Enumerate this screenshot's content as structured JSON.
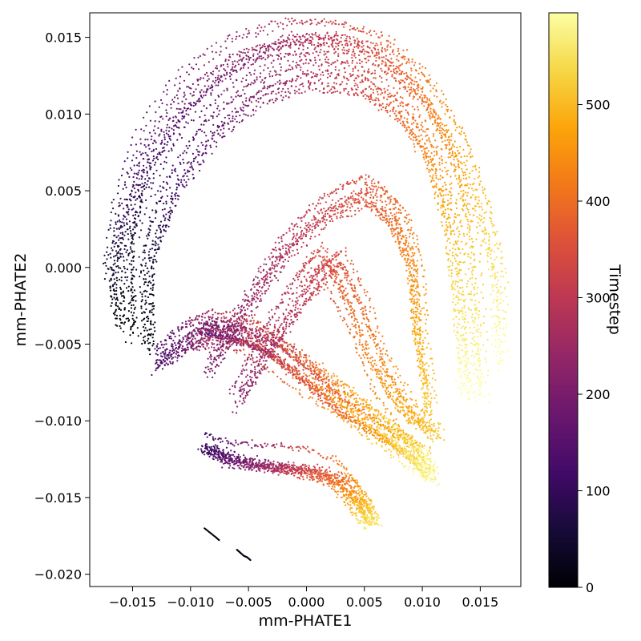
{
  "chart_data": {
    "type": "scatter",
    "xlabel": "mm-PHATE1",
    "ylabel": "mm-PHATE2",
    "colorbar_label": "Timestep",
    "colormap": "inferno",
    "xlim": [
      -0.0187,
      0.0185
    ],
    "ylim": [
      -0.0208,
      0.0166
    ],
    "color_range": [
      0,
      595
    ],
    "x_ticks": [
      {
        "value": -0.015,
        "label": "−0.015"
      },
      {
        "value": -0.01,
        "label": "−0.010"
      },
      {
        "value": -0.005,
        "label": "−0.005"
      },
      {
        "value": 0.0,
        "label": "0.000"
      },
      {
        "value": 0.005,
        "label": "0.005"
      },
      {
        "value": 0.01,
        "label": "0.010"
      },
      {
        "value": 0.015,
        "label": "0.015"
      }
    ],
    "y_ticks": [
      {
        "value": 0.015,
        "label": "0.015"
      },
      {
        "value": 0.01,
        "label": "0.010"
      },
      {
        "value": 0.005,
        "label": "0.005"
      },
      {
        "value": 0.0,
        "label": "0.000"
      },
      {
        "value": -0.005,
        "label": "−0.005"
      },
      {
        "value": -0.01,
        "label": "−0.010"
      },
      {
        "value": -0.015,
        "label": "−0.015"
      },
      {
        "value": -0.02,
        "label": "−0.020"
      }
    ],
    "colorbar_ticks": [
      {
        "value": 0,
        "label": "0"
      },
      {
        "value": 100,
        "label": "100"
      },
      {
        "value": 200,
        "label": "200"
      },
      {
        "value": 300,
        "label": "300"
      },
      {
        "value": 400,
        "label": "400"
      },
      {
        "value": 500,
        "label": "500"
      }
    ],
    "trajectory_families": [
      {
        "timesteps": [
          0,
          600
        ],
        "path": [
          [
            -0.0163,
            -0.0035
          ],
          [
            -0.017,
            0.0
          ],
          [
            -0.0162,
            0.0035
          ],
          [
            -0.0145,
            0.0075
          ],
          [
            -0.011,
            0.0115
          ],
          [
            -0.0065,
            0.014
          ],
          [
            -0.002,
            0.015
          ],
          [
            0.002,
            0.015
          ],
          [
            0.006,
            0.0142
          ],
          [
            0.0095,
            0.012
          ],
          [
            0.0125,
            0.0085
          ],
          [
            0.0148,
            0.004
          ],
          [
            0.0162,
            -0.0005
          ],
          [
            0.0165,
            -0.006
          ]
        ]
      },
      {
        "timesteps": [
          0,
          600
        ],
        "path": [
          [
            -0.015,
            -0.0045
          ],
          [
            -0.0153,
            0.001
          ],
          [
            -0.0138,
            0.0055
          ],
          [
            -0.0105,
            0.0095
          ],
          [
            -0.006,
            0.0125
          ],
          [
            -0.0015,
            0.014
          ],
          [
            0.0025,
            0.014
          ],
          [
            0.0065,
            0.013
          ],
          [
            0.0098,
            0.0105
          ],
          [
            0.0122,
            0.007
          ],
          [
            0.0138,
            0.0025
          ],
          [
            0.0145,
            -0.0035
          ],
          [
            0.0148,
            -0.0085
          ]
        ]
      },
      {
        "timesteps": [
          0,
          600
        ],
        "path": [
          [
            -0.0135,
            -0.005
          ],
          [
            -0.0135,
            0.0005
          ],
          [
            -0.0115,
            0.005
          ],
          [
            -0.008,
            0.009
          ],
          [
            -0.004,
            0.0115
          ],
          [
            0.0,
            0.0125
          ],
          [
            0.0045,
            0.0122
          ],
          [
            0.008,
            0.0105
          ],
          [
            0.0108,
            0.0075
          ],
          [
            0.0125,
            0.003
          ],
          [
            0.0133,
            -0.0025
          ],
          [
            0.0138,
            -0.008
          ]
        ]
      },
      {
        "timesteps": [
          150,
          580
        ],
        "path": [
          [
            -0.009,
            -0.0038
          ],
          [
            -0.006,
            -0.0042
          ],
          [
            -0.003,
            -0.005
          ],
          [
            0.0,
            -0.0068
          ],
          [
            0.003,
            -0.0088
          ],
          [
            0.0065,
            -0.0105
          ],
          [
            0.009,
            -0.0118
          ],
          [
            0.0108,
            -0.0135
          ]
        ]
      },
      {
        "timesteps": [
          100,
          560
        ],
        "path": [
          [
            -0.0085,
            -0.0115
          ],
          [
            -0.006,
            -0.0123
          ],
          [
            -0.003,
            -0.0126
          ],
          [
            0.0,
            -0.0128
          ],
          [
            0.003,
            -0.0135
          ],
          [
            0.0048,
            -0.015
          ],
          [
            0.0058,
            -0.0165
          ]
        ]
      },
      {
        "timesteps": [
          120,
          600
        ],
        "path": [
          [
            -0.013,
            -0.006
          ],
          [
            -0.0105,
            -0.0045
          ],
          [
            -0.0085,
            -0.004
          ],
          [
            -0.005,
            -0.0042
          ],
          [
            -0.001,
            -0.0065
          ],
          [
            0.003,
            -0.0085
          ],
          [
            0.007,
            -0.0108
          ],
          [
            0.0105,
            -0.013
          ]
        ]
      },
      {
        "timesteps": [
          200,
          520
        ],
        "path": [
          [
            -0.0085,
            -0.0065
          ],
          [
            -0.005,
            -0.002
          ],
          [
            -0.002,
            0.0015
          ],
          [
            0.0015,
            0.004
          ],
          [
            0.005,
            0.0052
          ],
          [
            0.0075,
            0.0035
          ],
          [
            0.009,
            0.0005
          ],
          [
            0.0095,
            -0.004
          ],
          [
            0.0105,
            -0.009
          ]
        ]
      },
      {
        "timesteps": [
          220,
          520
        ],
        "path": [
          [
            -0.006,
            -0.0085
          ],
          [
            -0.003,
            -0.0045
          ],
          [
            0.0,
            -0.001
          ],
          [
            0.002,
            0.0005
          ],
          [
            0.004,
            -0.0025
          ],
          [
            0.006,
            -0.0065
          ],
          [
            0.0085,
            -0.0095
          ],
          [
            0.011,
            -0.011
          ]
        ]
      }
    ],
    "outlier_segments": [
      {
        "timestep": 20,
        "points": [
          [
            -0.0088,
            -0.017
          ],
          [
            -0.0083,
            -0.0173
          ],
          [
            -0.0078,
            -0.0176
          ],
          [
            -0.0075,
            -0.0178
          ]
        ]
      },
      {
        "timestep": 25,
        "points": [
          [
            -0.006,
            -0.0184
          ],
          [
            -0.0057,
            -0.0186
          ],
          [
            -0.0054,
            -0.0188
          ],
          [
            -0.0051,
            -0.0189
          ],
          [
            -0.0048,
            -0.0191
          ]
        ]
      }
    ]
  }
}
